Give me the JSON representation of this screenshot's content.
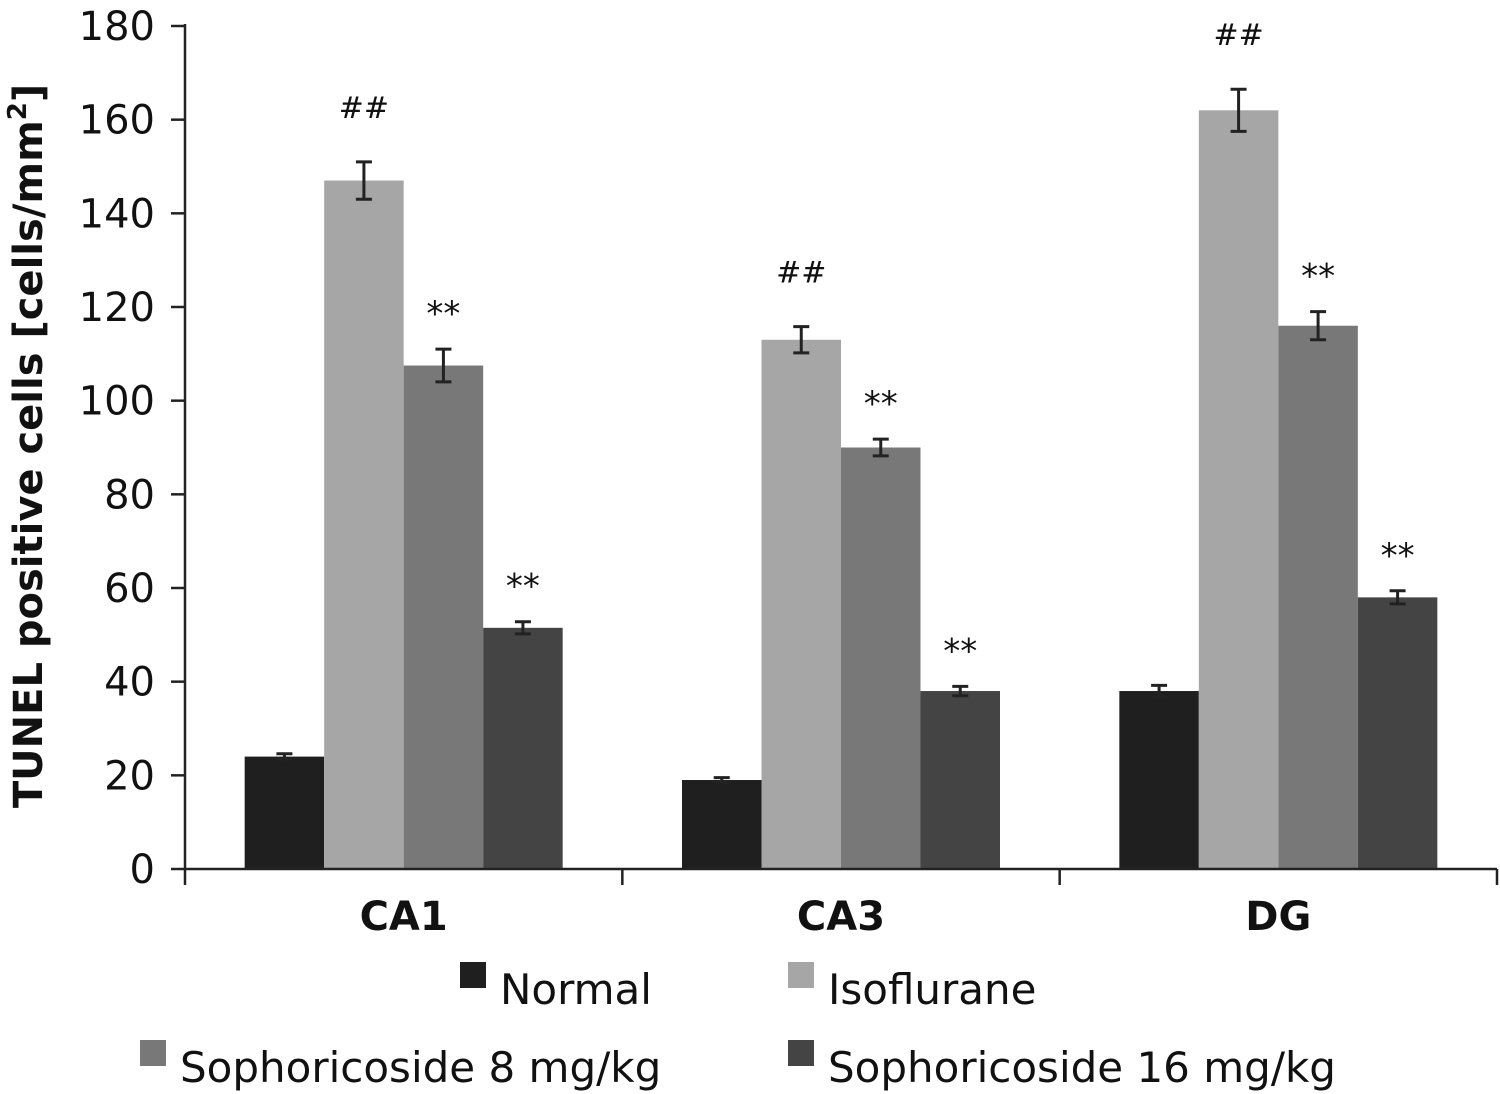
{
  "chart_data": {
    "type": "bar",
    "ylabel_main": "TUNEL positive cells [cells/mm",
    "ylabel_sup": "2",
    "ylabel_end": "]",
    "ylim": [
      0,
      180
    ],
    "yticks": [
      0,
      20,
      40,
      60,
      80,
      100,
      120,
      140,
      160,
      180
    ],
    "categories": [
      "CA1",
      "CA3",
      "DG"
    ],
    "series": [
      {
        "name": "Normal",
        "color": "#1f1f1f",
        "values": [
          24,
          19,
          38
        ],
        "errors": [
          0.6,
          0.5,
          1.2
        ],
        "annotations": [
          "",
          "",
          ""
        ]
      },
      {
        "name": "Isoflurane",
        "color": "#a6a6a6",
        "values": [
          147,
          113,
          162
        ],
        "errors": [
          4,
          2.8,
          4.5
        ],
        "annotations": [
          "##",
          "##",
          "##"
        ]
      },
      {
        "name": "Sophoricoside 8 mg/kg",
        "color": "#787878",
        "values": [
          107.5,
          90,
          116
        ],
        "errors": [
          3.5,
          1.8,
          3
        ],
        "annotations": [
          "**",
          "**",
          "**"
        ]
      },
      {
        "name": "Sophoricoside 16 mg/kg",
        "color": "#444444",
        "values": [
          51.5,
          38,
          58
        ],
        "errors": [
          1.3,
          1,
          1.4
        ],
        "annotations": [
          "**",
          "**",
          "**"
        ]
      }
    ],
    "legend": "bottom"
  }
}
